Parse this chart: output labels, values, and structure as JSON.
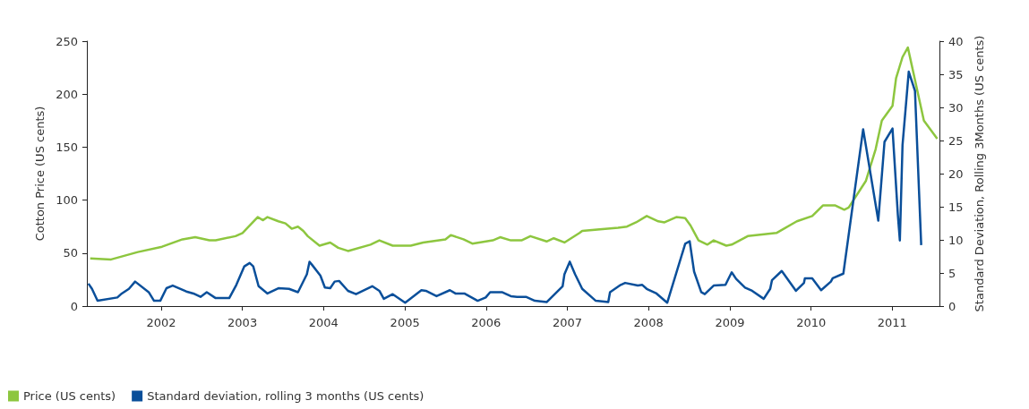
{
  "chart_data": {
    "type": "line",
    "ylabel": "Cotton Price (US cents)",
    "y2label": "Standard Deviation, Rolling 3Months (US cents)",
    "xlim": [
      "2001-02-01",
      "2011-08-01"
    ],
    "xticks": [
      "2002",
      "2003",
      "2004",
      "2005",
      "2006",
      "2007",
      "2008",
      "2009",
      "2010",
      "2011"
    ],
    "ylim": [
      0,
      250
    ],
    "yticks": [
      0,
      50,
      100,
      150,
      200,
      250
    ],
    "y2lim": [
      0,
      40
    ],
    "y2ticks": [
      0,
      5,
      10,
      15,
      20,
      25,
      30,
      35,
      40
    ],
    "grid": false,
    "legend": "bottom left",
    "series": [
      {
        "name": "Price (US cents)",
        "color": "#8dc63f",
        "x": [
          "2001-02-16",
          "2001-05-21",
          "2001-09-18",
          "2002-01-05",
          "2002-04-07",
          "2002-06-03",
          "2002-08-06",
          "2002-09-03",
          "2002-12-01",
          "2003-01-02",
          "2003-03-11",
          "2003-04-04",
          "2003-04-24",
          "2003-06-12",
          "2003-07-14",
          "2003-08-11",
          "2003-09-08",
          "2003-10-02",
          "2003-10-22",
          "2003-12-14",
          "2004-01-31",
          "2004-03-07",
          "2004-04-20",
          "2004-07-30",
          "2004-09-08",
          "2004-11-07",
          "2005-01-27",
          "2005-03-24",
          "2005-07-02",
          "2005-07-26",
          "2005-09-21",
          "2005-10-31",
          "2006-01-31",
          "2006-03-05",
          "2006-04-22",
          "2006-06-09",
          "2006-07-19",
          "2006-09-30",
          "2006-11-01",
          "2006-12-19",
          "2007-02-25",
          "2007-03-09",
          "2007-08-17",
          "2007-09-26",
          "2007-11-06",
          "2007-12-24",
          "2008-02-14",
          "2008-03-13",
          "2008-05-05",
          "2008-06-14",
          "2008-07-08",
          "2008-08-13",
          "2008-09-22",
          "2008-10-20",
          "2008-12-16",
          "2009-01-09",
          "2009-03-22",
          "2009-07-29",
          "2009-10-29",
          "2010-01-06",
          "2010-02-23",
          "2010-04-20",
          "2010-05-30",
          "2010-06-19",
          "2010-09-04",
          "2010-10-18",
          "2010-11-15",
          "2011-01-02",
          "2011-01-18",
          "2011-02-16",
          "2011-03-12",
          "2011-05-23",
          "2011-07-22"
        ],
        "values": [
          45,
          44,
          51,
          56,
          63,
          65,
          62,
          62,
          66,
          69,
          84,
          81,
          84,
          80,
          78,
          73,
          75,
          71,
          66,
          57,
          60,
          55,
          52,
          58,
          62,
          57,
          57,
          60,
          63,
          67,
          63,
          59,
          62,
          65,
          62,
          62,
          66,
          61,
          64,
          60,
          69,
          71,
          74,
          75,
          79,
          85,
          80,
          79,
          84,
          83,
          76,
          62,
          58,
          62,
          57,
          58,
          66,
          69,
          80,
          85,
          95,
          95,
          91,
          93,
          118,
          148,
          175,
          189,
          215,
          235,
          244,
          175,
          158
        ]
      },
      {
        "name": "Standard deviation, rolling 3 months (US cents)",
        "color": "#0a4f9a",
        "axis": "y2",
        "x": [
          "2001-02-08",
          "2001-02-24",
          "2001-03-21",
          "2001-06-18",
          "2001-07-08",
          "2001-08-09",
          "2001-09-06",
          "2001-11-06",
          "2001-11-30",
          "2001-12-28",
          "2002-01-25",
          "2002-02-22",
          "2002-04-24",
          "2002-05-26",
          "2002-06-27",
          "2002-07-25",
          "2002-09-03",
          "2002-11-03",
          "2002-12-05",
          "2003-01-10",
          "2003-02-03",
          "2003-02-19",
          "2003-03-15",
          "2003-04-24",
          "2003-06-12",
          "2003-07-30",
          "2003-09-08",
          "2003-10-18",
          "2003-10-30",
          "2003-11-11",
          "2003-12-18",
          "2004-01-07",
          "2004-01-31",
          "2004-02-20",
          "2004-03-11",
          "2004-04-20",
          "2004-05-26",
          "2004-08-07",
          "2004-09-08",
          "2004-09-28",
          "2004-11-07",
          "2005-01-02",
          "2005-03-16",
          "2005-04-05",
          "2005-05-23",
          "2005-07-22",
          "2005-08-16",
          "2005-09-25",
          "2005-11-24",
          "2005-12-30",
          "2006-01-19",
          "2006-03-13",
          "2006-04-22",
          "2006-05-20",
          "2006-06-29",
          "2006-08-08",
          "2006-09-30",
          "2006-12-11",
          "2006-12-19",
          "2007-01-12",
          "2007-02-05",
          "2007-03-09",
          "2007-05-09",
          "2007-07-04",
          "2007-07-12",
          "2007-08-29",
          "2007-09-18",
          "2007-11-14",
          "2007-12-04",
          "2007-12-24",
          "2008-02-06",
          "2008-03-25",
          "2008-06-14",
          "2008-07-04",
          "2008-07-24",
          "2008-08-25",
          "2008-09-10",
          "2008-10-20",
          "2008-12-12",
          "2009-01-09",
          "2009-01-29",
          "2009-03-10",
          "2009-04-11",
          "2009-06-02",
          "2009-07-01",
          "2009-07-09",
          "2009-08-22",
          "2009-10-25",
          "2009-11-30",
          "2009-12-04",
          "2010-01-06",
          "2010-02-15",
          "2010-03-31",
          "2010-04-08",
          "2010-05-26",
          "2010-08-23",
          "2010-10-30",
          "2010-11-27",
          "2011-01-02",
          "2011-01-26",
          "2011-02-04",
          "2011-02-16",
          "2011-03-16",
          "2011-04-13",
          "2011-05-11"
        ],
        "values": [
          3.4,
          2.6,
          0.8,
          1.3,
          1.9,
          2.6,
          3.7,
          2.1,
          0.8,
          0.8,
          2.7,
          3.1,
          2.2,
          1.9,
          1.4,
          2.1,
          1.2,
          1.2,
          3.2,
          6.0,
          6.5,
          6.0,
          3.0,
          1.9,
          2.7,
          2.6,
          2.1,
          4.8,
          6.7,
          6.2,
          4.6,
          2.8,
          2.7,
          3.7,
          3.8,
          2.3,
          1.8,
          3.0,
          2.3,
          1.1,
          1.8,
          0.5,
          2.4,
          2.3,
          1.5,
          2.4,
          1.9,
          1.9,
          0.8,
          1.3,
          2.1,
          2.1,
          1.5,
          1.4,
          1.4,
          0.8,
          0.6,
          3.0,
          4.8,
          6.7,
          4.8,
          2.6,
          0.8,
          0.6,
          2.1,
          3.2,
          3.5,
          3.1,
          3.2,
          2.6,
          1.9,
          0.5,
          9.4,
          9.8,
          5.2,
          2.1,
          1.8,
          3.1,
          3.2,
          5.1,
          4.1,
          2.8,
          2.3,
          1.1,
          2.6,
          3.9,
          5.3,
          2.3,
          3.5,
          4.2,
          4.2,
          2.4,
          3.7,
          4.2,
          4.9,
          26.7,
          12.9,
          24.8,
          26.8,
          13.8,
          9.9,
          24.3,
          35.4,
          32.5,
          9.2
        ]
      }
    ]
  }
}
